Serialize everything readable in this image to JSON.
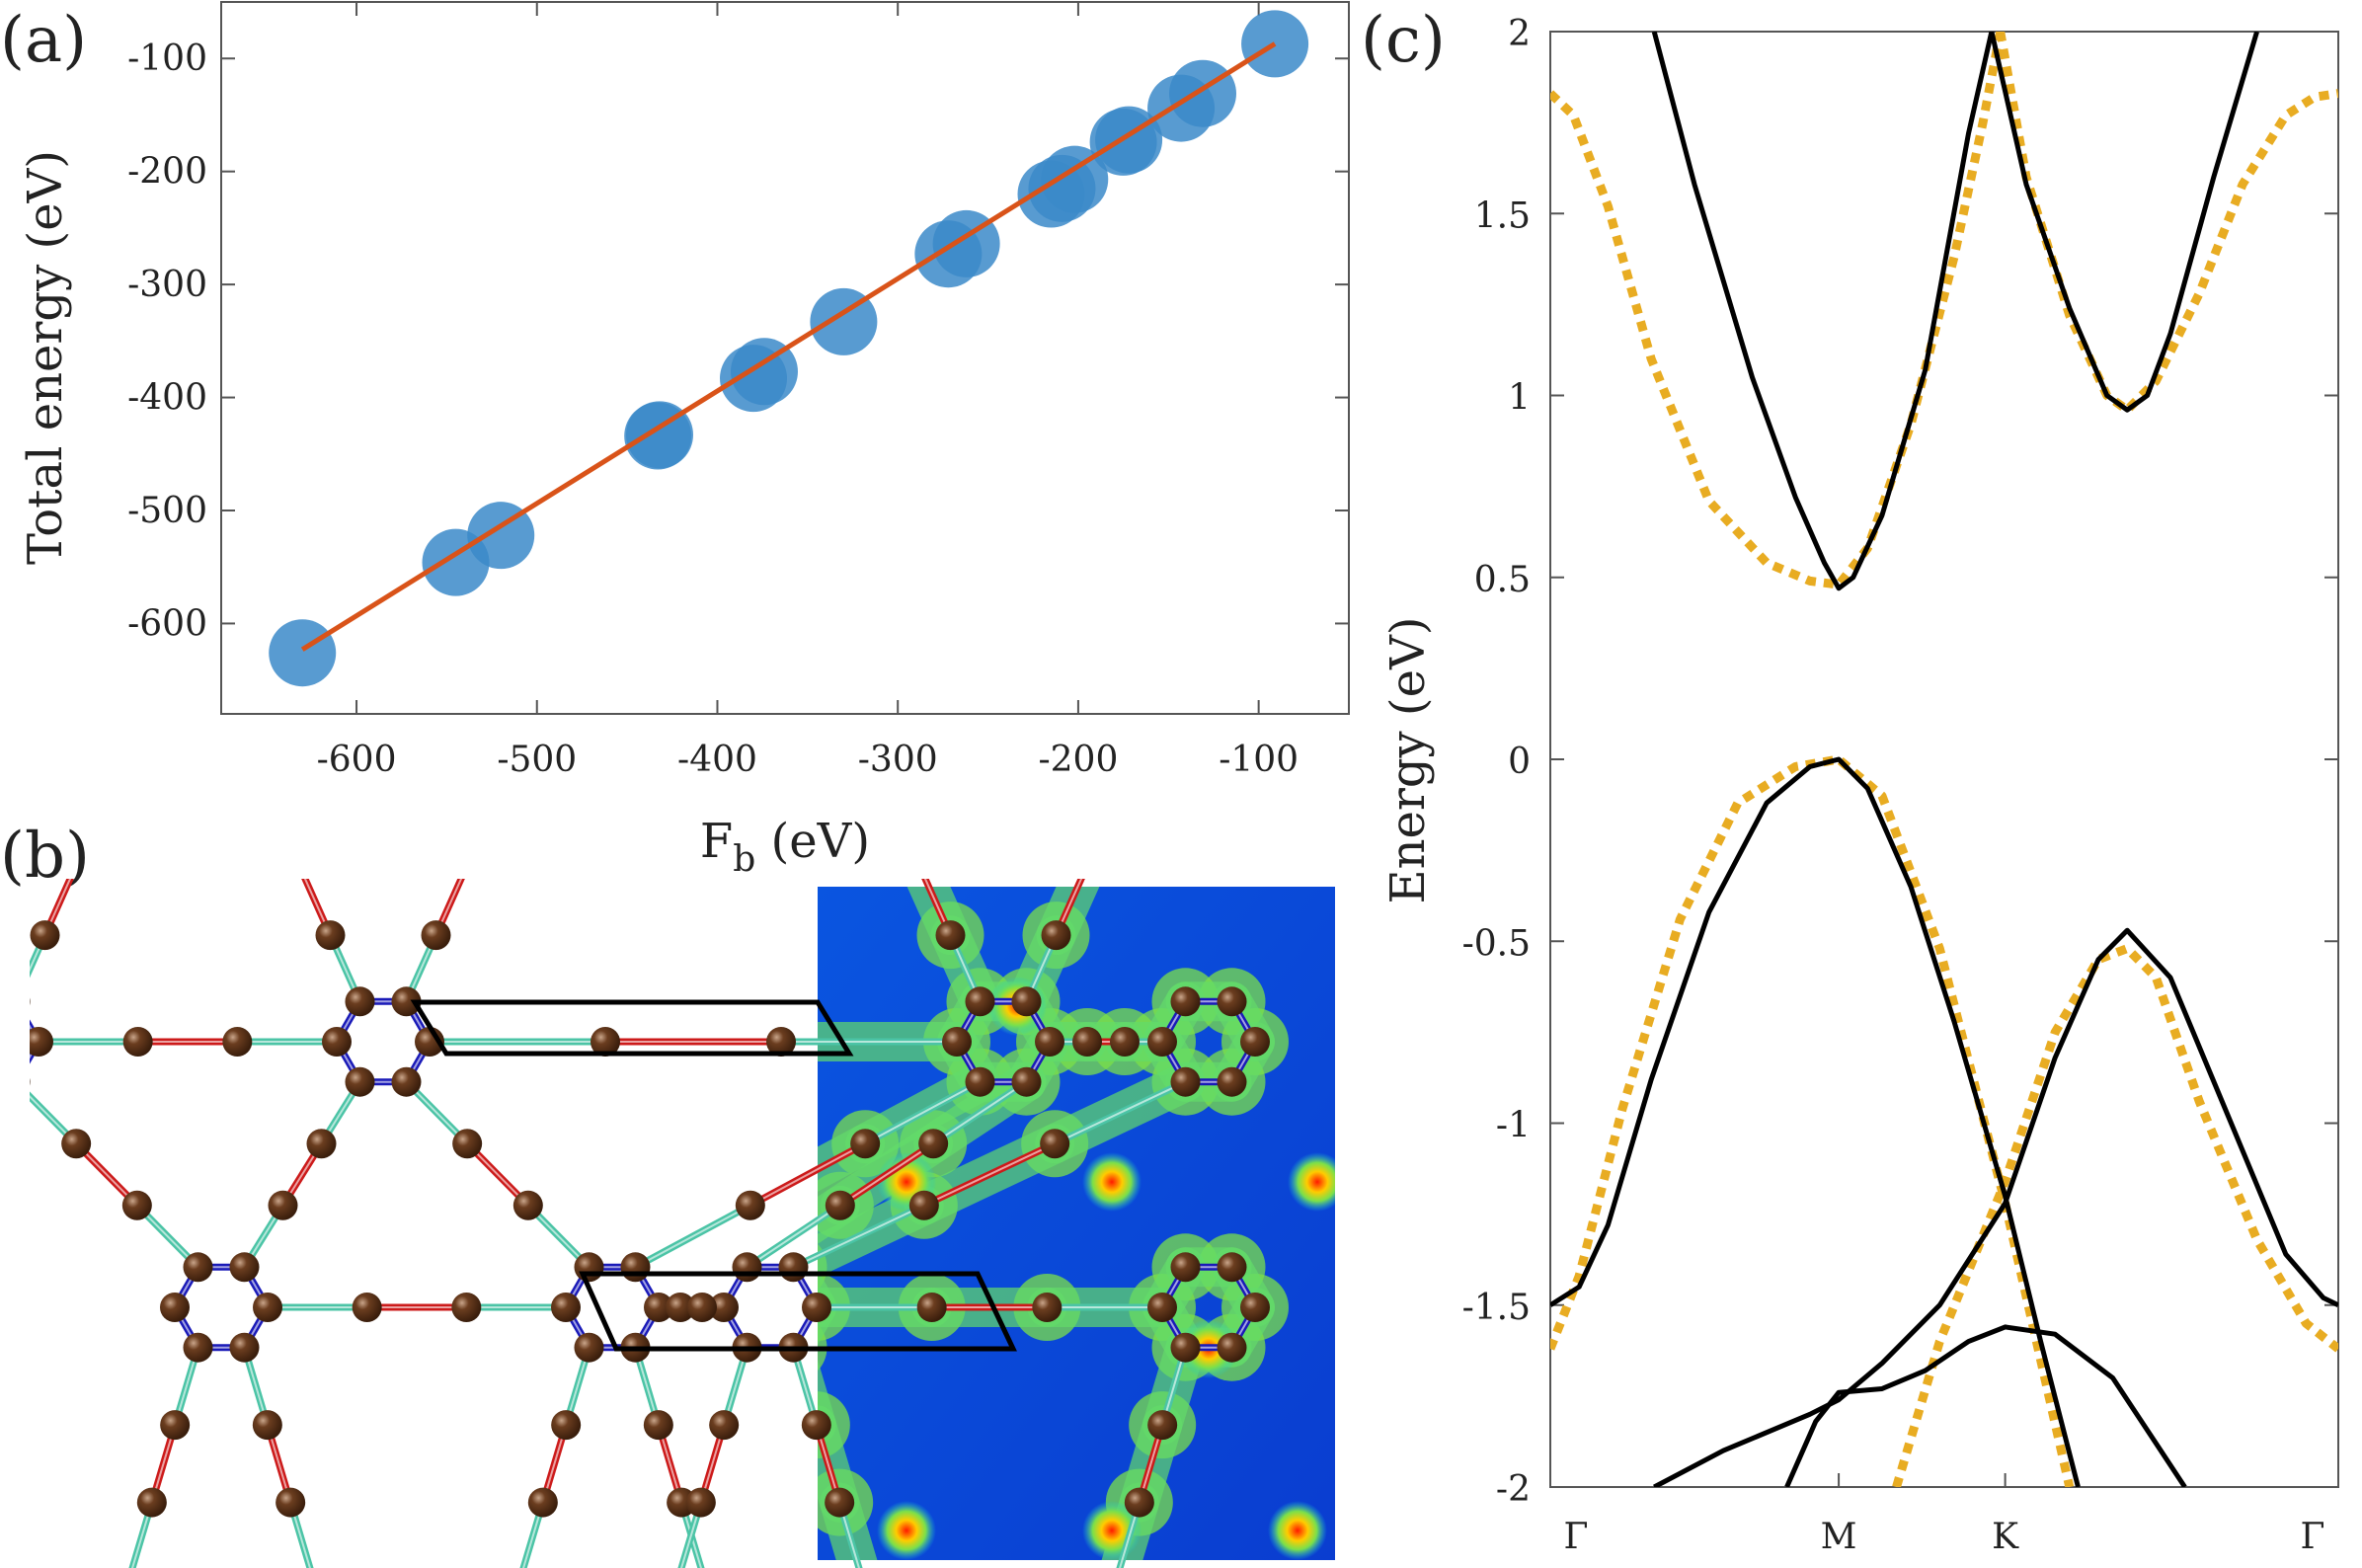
{
  "colors": {
    "scatter": "#3b8ac9",
    "fit_line": "#d95319",
    "dft": "#000000",
    "tb": "#e8ac22",
    "bond_pp": "#1a1ab8",
    "bond_sp_sp2": "#4bc4a6",
    "bond_sp_sp": "#cc1a1a",
    "atom": "#5a3319",
    "map_low": "#0a3dd8",
    "map_mid": "#19d0d6",
    "map_high": "#ff2b00"
  },
  "chart_data": [
    {
      "panel": "a",
      "panel_label": "(a)",
      "type": "scatter",
      "xlabel_main": "F",
      "xlabel_sub": "b",
      "xlabel_unit": " (eV)",
      "ylabel": "Total energy (eV)",
      "xlim": [
        -675,
        -50
      ],
      "ylim": [
        -680,
        -50
      ],
      "xticks": [
        -600,
        -500,
        -400,
        -300,
        -200,
        -100
      ],
      "yticks": [
        -600,
        -500,
        -400,
        -300,
        -200,
        -100
      ],
      "xtick_labels": [
        "-600",
        "-500",
        "-400",
        "-300",
        "-200",
        "-100"
      ],
      "ytick_labels": [
        "-600",
        "-500",
        "-400",
        "-300",
        "-200",
        "-100"
      ],
      "points": [
        {
          "x": -630,
          "y": -626
        },
        {
          "x": -545,
          "y": -546
        },
        {
          "x": -520,
          "y": -522
        },
        {
          "x": -433,
          "y": -434
        },
        {
          "x": -432,
          "y": -433
        },
        {
          "x": -380,
          "y": -383
        },
        {
          "x": -374,
          "y": -377
        },
        {
          "x": -330,
          "y": -333
        },
        {
          "x": -272,
          "y": -273
        },
        {
          "x": -262,
          "y": -264
        },
        {
          "x": -215,
          "y": -220
        },
        {
          "x": -209,
          "y": -215
        },
        {
          "x": -202,
          "y": -207
        },
        {
          "x": -175,
          "y": -174
        },
        {
          "x": -172,
          "y": -172
        },
        {
          "x": -143,
          "y": -144
        },
        {
          "x": -131,
          "y": -131
        },
        {
          "x": -91,
          "y": -87
        }
      ],
      "fit_line": {
        "x": [
          -630,
          -91
        ],
        "y": [
          -623,
          -87
        ]
      }
    },
    {
      "panel": "b",
      "panel_label": "(b)",
      "type": "other",
      "description_items": [
        "graphyne-like lattice",
        "unit cell",
        "charge density map"
      ]
    },
    {
      "panel": "c",
      "panel_label": "(c)",
      "type": "line",
      "ylabel": "Energy (eV)",
      "ylim": [
        -2,
        2
      ],
      "yticks": [
        -2,
        -1.5,
        -1,
        -0.5,
        0,
        0.5,
        1,
        1.5,
        2
      ],
      "ytick_labels": [
        "-2",
        "-1.5",
        "-1",
        "-0.5",
        "0",
        "0.5",
        "1",
        "1.5",
        "2"
      ],
      "xlim": [
        0,
        2.732
      ],
      "kpoints": [
        0,
        1,
        1.577,
        2.732
      ],
      "kpoint_labels": [
        "Γ",
        "M",
        "K",
        "Γ"
      ],
      "series": [
        {
          "style": "solid",
          "x": [
            0.36,
            0.5,
            0.7,
            0.85,
            0.95,
            1.0,
            1.05,
            1.15,
            1.3,
            1.45,
            1.53
          ],
          "y": [
            2.0,
            1.58,
            1.05,
            0.72,
            0.54,
            0.47,
            0.5,
            0.67,
            1.07,
            1.72,
            2.0
          ]
        },
        {
          "style": "solid",
          "x": [
            1.53,
            1.65,
            1.8,
            1.93,
            2.0,
            2.07,
            2.15,
            2.3,
            2.45
          ],
          "y": [
            2.0,
            1.58,
            1.24,
            1.0,
            0.96,
            1.0,
            1.17,
            1.6,
            2.0
          ]
        },
        {
          "style": "solid",
          "x": [
            0.0,
            0.1,
            0.2,
            0.35,
            0.55,
            0.75,
            0.9,
            1.0,
            1.1,
            1.25,
            1.4,
            1.577,
            1.7,
            1.83
          ],
          "y": [
            -1.5,
            -1.45,
            -1.28,
            -0.88,
            -0.42,
            -0.12,
            -0.02,
            0.0,
            -0.08,
            -0.35,
            -0.72,
            -1.2,
            -1.6,
            -2.0
          ]
        },
        {
          "style": "solid",
          "x": [
            0.36,
            0.6,
            0.9,
            1.0,
            1.15,
            1.35,
            1.577,
            1.75,
            1.9,
            2.0,
            2.15,
            2.35,
            2.55,
            2.68,
            2.732
          ],
          "y": [
            -2.0,
            -1.9,
            -1.8,
            -1.76,
            -1.66,
            -1.5,
            -1.22,
            -0.82,
            -0.55,
            -0.47,
            -0.6,
            -0.98,
            -1.36,
            -1.48,
            -1.5
          ]
        },
        {
          "style": "solid",
          "x": [
            0.82,
            0.92,
            1.0,
            1.15,
            1.3,
            1.45,
            1.577,
            1.75,
            1.95,
            2.1,
            2.2
          ],
          "y": [
            -2.0,
            -1.82,
            -1.74,
            -1.73,
            -1.68,
            -1.6,
            -1.56,
            -1.58,
            -1.7,
            -1.88,
            -2.0
          ]
        }
      ],
      "tb_series": [
        {
          "style": "dotted",
          "x": [
            0.0,
            0.08,
            0.2,
            0.35,
            0.55,
            0.75,
            0.9,
            1.0,
            1.1,
            1.25,
            1.4,
            1.5,
            1.56
          ],
          "y": [
            1.83,
            1.77,
            1.52,
            1.1,
            0.71,
            0.54,
            0.49,
            0.48,
            0.58,
            0.92,
            1.38,
            1.75,
            2.0
          ]
        },
        {
          "style": "dotted",
          "x": [
            1.56,
            1.65,
            1.8,
            1.93,
            2.0,
            2.1,
            2.25,
            2.4,
            2.55,
            2.65,
            2.732
          ],
          "y": [
            2.0,
            1.6,
            1.22,
            1.0,
            0.96,
            1.04,
            1.28,
            1.58,
            1.77,
            1.82,
            1.83
          ]
        },
        {
          "style": "dotted",
          "x": [
            0.0,
            0.1,
            0.25,
            0.45,
            0.65,
            0.85,
            1.0,
            1.15,
            1.35,
            1.577,
            1.72,
            1.8
          ],
          "y": [
            -1.62,
            -1.42,
            -0.96,
            -0.44,
            -0.12,
            -0.02,
            0.0,
            -0.1,
            -0.52,
            -1.22,
            -1.72,
            -2.0
          ]
        },
        {
          "style": "dotted",
          "x": [
            1.2,
            1.35,
            1.577,
            1.75,
            1.9,
            2.0,
            2.1,
            2.25,
            2.45,
            2.62,
            2.732
          ],
          "y": [
            -2.0,
            -1.6,
            -1.16,
            -0.75,
            -0.55,
            -0.52,
            -0.6,
            -0.94,
            -1.32,
            -1.55,
            -1.62
          ]
        }
      ]
    }
  ]
}
